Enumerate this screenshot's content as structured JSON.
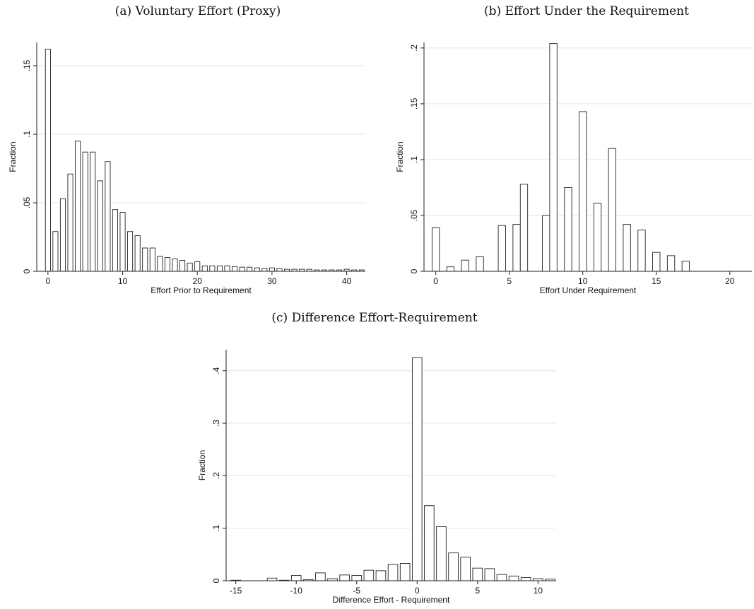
{
  "chart_data": [
    {
      "type": "bar",
      "panel_title": "(a) Voluntary Effort (Proxy)",
      "xlabel": "Effort Prior to Requirement",
      "ylabel": "Fraction",
      "xlim": [
        -1.5,
        42.5
      ],
      "ylim": [
        0,
        0.167
      ],
      "xticks": [
        0,
        10,
        20,
        30,
        40
      ],
      "xtick_labels": [
        "0",
        "10",
        "20",
        "30",
        "40"
      ],
      "yticks": [
        0,
        0.05,
        0.1,
        0.15
      ],
      "ytick_labels": [
        "0",
        ".05",
        ".1",
        ".15"
      ],
      "grid": true,
      "bar_width": 0.68,
      "x": [
        0,
        1,
        2,
        3,
        4,
        5,
        6,
        7,
        8,
        9,
        10,
        11,
        12,
        13,
        14,
        15,
        16,
        17,
        18,
        19,
        20,
        21,
        22,
        23,
        24,
        25,
        26,
        27,
        28,
        29,
        30,
        31,
        32,
        33,
        34,
        35,
        36,
        37,
        38,
        39,
        40,
        41,
        42
      ],
      "values": [
        0.162,
        0.029,
        0.053,
        0.071,
        0.095,
        0.087,
        0.087,
        0.066,
        0.08,
        0.045,
        0.043,
        0.029,
        0.026,
        0.017,
        0.017,
        0.011,
        0.01,
        0.009,
        0.008,
        0.006,
        0.007,
        0.004,
        0.004,
        0.004,
        0.004,
        0.0035,
        0.003,
        0.003,
        0.0025,
        0.002,
        0.0025,
        0.002,
        0.0015,
        0.0015,
        0.0015,
        0.0015,
        0.001,
        0.001,
        0.001,
        0.001,
        0.0015,
        0.001,
        0.001
      ]
    },
    {
      "type": "bar",
      "panel_title": "(b) Effort Under the Requirement",
      "xlabel": "Effort Under Requirement",
      "ylabel": "Fraction",
      "xlim": [
        -0.8,
        21.5
      ],
      "ylim": [
        0,
        0.205
      ],
      "xticks": [
        0,
        5,
        10,
        15,
        20
      ],
      "xtick_labels": [
        "0",
        "5",
        "10",
        "15",
        "20"
      ],
      "yticks": [
        0,
        0.05,
        0.1,
        0.15,
        0.2
      ],
      "ytick_labels": [
        "0",
        ".05",
        ".1",
        ".15",
        ".2"
      ],
      "grid": true,
      "bar_width": 0.5,
      "x": [
        0,
        1,
        2,
        3,
        4,
        5,
        6,
        7,
        8,
        9,
        10,
        11,
        12,
        13,
        14,
        15,
        16,
        17,
        18,
        19,
        20,
        21
      ],
      "values": [
        0.039,
        0.004,
        0.01,
        0.013,
        0.0,
        0.041,
        0.042,
        0.078,
        0.0,
        0.05,
        0.204,
        0.075,
        0.143,
        0.0,
        0.061,
        0.11,
        0.042,
        0.037,
        0.017,
        0.014,
        0.009,
        0.0
      ],
      "x_actual": [
        0,
        1,
        2,
        3,
        4.5,
        4.5,
        5.5,
        6,
        7.5,
        7.5,
        8,
        9,
        10,
        10.5,
        11,
        12,
        13,
        14,
        15,
        16,
        17,
        21
      ]
    },
    {
      "type": "bar",
      "panel_title": "(c) Difference Effort-Requirement",
      "xlabel": "Difference Effort - Requirement",
      "ylabel": "Fraction",
      "xlim": [
        -15.8,
        11.5
      ],
      "ylim": [
        0,
        0.44
      ],
      "xticks": [
        -15,
        -10,
        -5,
        0,
        5,
        10
      ],
      "xtick_labels": [
        "-15",
        "-10",
        "-5",
        "0",
        "5",
        "10"
      ],
      "yticks": [
        0,
        0.1,
        0.2,
        0.3,
        0.4
      ],
      "ytick_labels": [
        "0",
        ".1",
        ".2",
        ".3",
        ".4"
      ],
      "grid": true,
      "bar_width": 0.8,
      "x": [
        -15,
        -14,
        -13,
        -12,
        -11,
        -10,
        -9,
        -8,
        -7,
        -6,
        -5,
        -4,
        -3,
        -2,
        -1,
        0,
        1,
        2,
        3,
        4,
        5,
        6,
        7,
        8,
        9,
        10,
        11
      ],
      "values": [
        0.001,
        0.0,
        0.0,
        0.005,
        0.001,
        0.01,
        0.002,
        0.015,
        0.004,
        0.011,
        0.01,
        0.02,
        0.019,
        0.031,
        0.033,
        0.425,
        0.143,
        0.103,
        0.053,
        0.045,
        0.024,
        0.023,
        0.012,
        0.009,
        0.006,
        0.004,
        0.003
      ]
    }
  ]
}
